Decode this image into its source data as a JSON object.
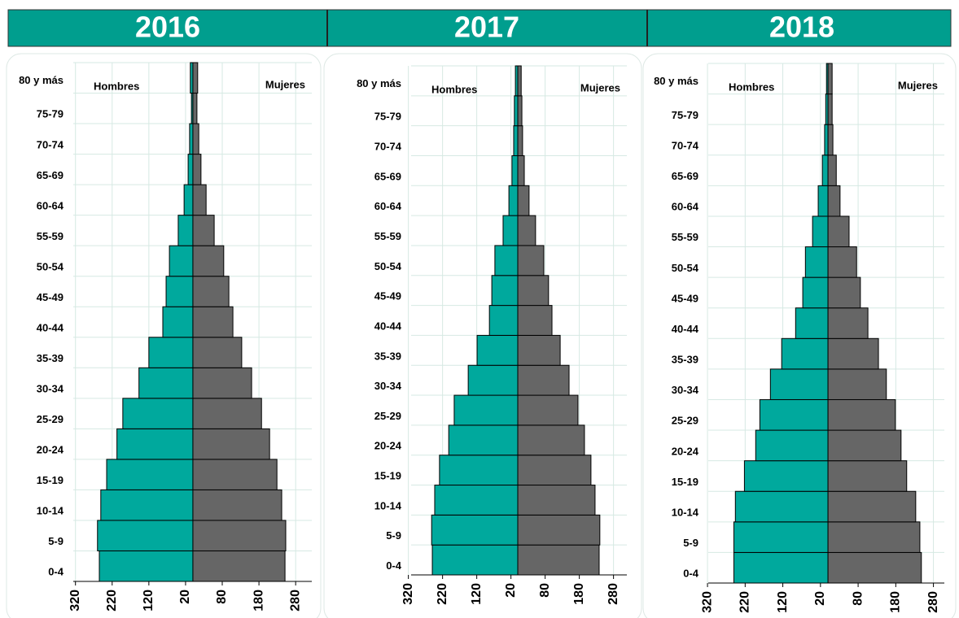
{
  "chart_data": [
    {
      "type": "pyramid",
      "title": "2016",
      "categories": [
        "0-4",
        "5-9",
        "10-14",
        "15-19",
        "20-24",
        "25-29",
        "30-34",
        "35-39",
        "40-44",
        "45-49",
        "50-54",
        "55-59",
        "60-64",
        "65-69",
        "70-74",
        "75-79",
        "80 y más"
      ],
      "series": [
        {
          "name": "Hombres",
          "color": "#00a99d",
          "values": [
            -255,
            -260,
            -251,
            -235,
            -207,
            -191,
            -147,
            -120,
            -82,
            -73,
            -64,
            -40,
            -24,
            -13,
            -9,
            -4,
            -7
          ]
        },
        {
          "name": "Mujeres",
          "color": "#666666",
          "values": [
            251,
            253,
            242,
            229,
            209,
            187,
            160,
            133,
            109,
            98,
            84,
            58,
            36,
            22,
            16,
            11,
            13
          ]
        }
      ],
      "xlim": [
        -326,
        324
      ],
      "xticks": [
        {
          "value": -320,
          "label": "320"
        },
        {
          "value": -220,
          "label": "220"
        },
        {
          "value": -120,
          "label": "120"
        },
        {
          "value": -20,
          "label": "20"
        },
        80,
        180,
        280
      ],
      "grid": true
    },
    {
      "type": "pyramid",
      "title": "2017",
      "categories": [
        "0-4",
        "5-9",
        "10-14",
        "15-19",
        "20-24",
        "25-29",
        "30-34",
        "35-39",
        "40-44",
        "45-49",
        "50-54",
        "55-59",
        "60-64",
        "65-69",
        "70-74",
        "75-79",
        "80 y más"
      ],
      "series": [
        {
          "name": "Hombres",
          "color": "#00a99d",
          "values": [
            -250,
            -252,
            -243,
            -229,
            -202,
            -186,
            -145,
            -119,
            -83,
            -76,
            -67,
            -43,
            -26,
            -17,
            -12,
            -10,
            -7
          ]
        },
        {
          "name": "Mujeres",
          "color": "#666666",
          "values": [
            238,
            240,
            226,
            214,
            195,
            176,
            150,
            124,
            100,
            90,
            76,
            52,
            33,
            19,
            14,
            12,
            10
          ]
        }
      ],
      "xlim": [
        -312,
        319
      ],
      "xticks": [
        {
          "value": -320,
          "label": "320"
        },
        {
          "value": -220,
          "label": "220"
        },
        {
          "value": -120,
          "label": "120"
        },
        {
          "value": -20,
          "label": "20"
        },
        80,
        180,
        280
      ],
      "grid": true
    },
    {
      "type": "pyramid",
      "title": "2018",
      "categories": [
        "0-4",
        "5-9",
        "10-14",
        "15-19",
        "20-24",
        "25-29",
        "30-34",
        "35-39",
        "40-44",
        "45-49",
        "50-54",
        "55-59",
        "60-64",
        "65-69",
        "70-74",
        "75-79",
        "80 y más"
      ],
      "series": [
        {
          "name": "Hombres",
          "color": "#00a99d",
          "values": [
            -250,
            -250,
            -246,
            -222,
            -192,
            -181,
            -153,
            -123,
            -86,
            -67,
            -60,
            -41,
            -26,
            -15,
            -9,
            -6,
            -4
          ]
        },
        {
          "name": "Mujeres",
          "color": "#666666",
          "values": [
            248,
            244,
            233,
            209,
            194,
            179,
            155,
            134,
            106,
            86,
            76,
            56,
            32,
            22,
            13,
            11,
            11
          ]
        }
      ],
      "xlim": [
        -318,
        309
      ],
      "xticks": [
        {
          "value": -320,
          "label": "320"
        },
        {
          "value": -220,
          "label": "220"
        },
        {
          "value": -120,
          "label": "120"
        },
        {
          "value": -20,
          "label": "20"
        },
        80,
        180,
        280
      ],
      "grid": true
    }
  ]
}
